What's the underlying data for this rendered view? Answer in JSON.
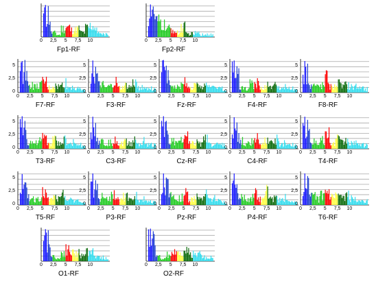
{
  "top_text": "",
  "chart_data": {
    "type": "bar",
    "description_axis": {
      "xticks": [
        "0",
        "2,5",
        "5",
        "7,5",
        "10"
      ],
      "yticks": [
        "0",
        "2,5",
        "5"
      ],
      "xlim": [
        0,
        14
      ],
      "ylim": [
        0,
        6.5
      ]
    },
    "band_colors": {
      "delta": "#1a1aff",
      "theta": "#1f3fd0",
      "alpha": "#22cc22",
      "beta1": "#ffff44",
      "red": "#ff0000",
      "darkgreen": "#0b6b0b",
      "gamma": "#33ddee"
    },
    "panels": [
      {
        "name": "Fp1-RF",
        "y_axis": false,
        "peaks": [
          6.2,
          6.0,
          1.3,
          0.7,
          2.6,
          3.0,
          2.1,
          2.5,
          1.4,
          2.8,
          3.4,
          2.0,
          1.4,
          1.0,
          0.9
        ]
      },
      {
        "name": "Fp2-RF",
        "y_axis": false,
        "peaks": [
          6.3,
          5.9,
          4.5,
          3.6,
          2.5,
          2.3,
          1.3,
          3.1,
          1.0,
          1.0,
          1.2,
          0.8,
          1.1,
          0.9,
          0.7
        ]
      },
      {
        "name": "F7-RF",
        "y_axis": true,
        "peaks": [
          6.1,
          6.3,
          2.4,
          1.8,
          2.3,
          3.4,
          1.5,
          2.0,
          1.9,
          3.0,
          1.6,
          2.1,
          2.2,
          1.4,
          1.1
        ]
      },
      {
        "name": "F3-RF",
        "y_axis": true,
        "peaks": [
          6.2,
          5.0,
          2.3,
          1.5,
          1.9,
          3.2,
          1.4,
          2.1,
          1.7,
          2.9,
          1.5,
          2.3,
          1.6,
          1.3,
          1.0
        ]
      },
      {
        "name": "Fz-RF",
        "y_axis": true,
        "peaks": [
          6.3,
          5.2,
          2.4,
          1.6,
          2.2,
          3.5,
          1.3,
          2.2,
          1.6,
          2.8,
          1.5,
          2.0,
          1.9,
          1.4,
          1.1
        ]
      },
      {
        "name": "F4-RF",
        "y_axis": true,
        "peaks": [
          6.2,
          5.1,
          2.2,
          1.4,
          2.6,
          3.3,
          1.4,
          2.4,
          1.5,
          2.7,
          1.4,
          2.4,
          1.7,
          1.2,
          0.9
        ]
      },
      {
        "name": "F8-RF",
        "y_axis": true,
        "peaks": [
          6.1,
          5.6,
          2.4,
          1.9,
          2.2,
          4.6,
          1.8,
          2.9,
          2.0,
          2.4,
          1.8,
          2.2,
          2.3,
          1.4,
          1.2
        ]
      },
      {
        "name": "T3-RF",
        "y_axis": true,
        "peaks": [
          6.3,
          5.4,
          2.1,
          1.7,
          2.4,
          3.3,
          1.7,
          2.8,
          1.6,
          3.1,
          1.5,
          2.1,
          2.0,
          1.3,
          1.2
        ]
      },
      {
        "name": "C3-RF",
        "y_axis": true,
        "peaks": [
          6.2,
          5.0,
          2.2,
          1.5,
          1.9,
          3.2,
          1.4,
          2.3,
          1.6,
          2.8,
          1.5,
          2.3,
          1.7,
          1.3,
          1.0
        ]
      },
      {
        "name": "Cz-RF",
        "y_axis": true,
        "peaks": [
          6.3,
          5.4,
          2.3,
          1.6,
          2.4,
          3.8,
          1.6,
          2.1,
          1.5,
          2.9,
          1.4,
          2.4,
          2.2,
          1.4,
          1.0
        ]
      },
      {
        "name": "C4-RF",
        "y_axis": true,
        "peaks": [
          6.1,
          5.1,
          2.3,
          1.5,
          2.1,
          3.2,
          1.3,
          2.5,
          1.7,
          2.8,
          1.5,
          2.6,
          2.0,
          1.4,
          1.0
        ]
      },
      {
        "name": "T4-RF",
        "y_axis": true,
        "peaks": [
          6.2,
          5.6,
          2.6,
          1.6,
          2.5,
          4.2,
          1.5,
          3.0,
          1.9,
          2.5,
          1.6,
          2.9,
          2.1,
          1.3,
          1.1
        ]
      },
      {
        "name": "T5-RF",
        "y_axis": true,
        "peaks": [
          6.0,
          4.4,
          2.6,
          1.9,
          2.7,
          3.6,
          1.6,
          2.3,
          1.8,
          3.0,
          1.5,
          1.6,
          2.4,
          1.3,
          1.1
        ]
      },
      {
        "name": "P3-RF",
        "y_axis": true,
        "peaks": [
          6.1,
          4.8,
          2.5,
          1.6,
          2.6,
          3.2,
          1.6,
          2.6,
          1.5,
          3.0,
          1.4,
          2.2,
          1.5,
          1.2,
          1.0
        ]
      },
      {
        "name": "Pz-RF",
        "y_axis": true,
        "peaks": [
          6.1,
          5.3,
          2.6,
          1.6,
          2.4,
          3.4,
          1.8,
          2.6,
          1.6,
          3.2,
          1.6,
          2.2,
          1.8,
          1.3,
          1.1
        ]
      },
      {
        "name": "P4-RF",
        "y_axis": true,
        "peaks": [
          6.1,
          4.0,
          2.3,
          1.8,
          2.5,
          3.3,
          1.7,
          4.2,
          1.7,
          2.4,
          1.5,
          2.2,
          1.9,
          1.3,
          1.0
        ]
      },
      {
        "name": "T6-RF",
        "y_axis": true,
        "peaks": [
          6.1,
          5.6,
          2.6,
          1.8,
          2.8,
          3.5,
          2.2,
          2.6,
          2.0,
          2.9,
          1.9,
          2.4,
          2.3,
          1.5,
          1.2
        ]
      },
      {
        "name": "O1-RF",
        "y_axis": false,
        "peaks": [
          6.2,
          6.0,
          1.4,
          0.8,
          2.6,
          3.3,
          2.4,
          2.8,
          1.5,
          2.7,
          3.1,
          2.0,
          1.3,
          1.0,
          0.9
        ]
      },
      {
        "name": "O2-RF",
        "y_axis": false,
        "peaks": [
          6.3,
          5.8,
          1.2,
          0.8,
          1.9,
          2.4,
          2.0,
          2.4,
          2.8,
          2.3,
          2.0,
          2.2,
          1.2,
          1.4,
          0.9
        ]
      }
    ]
  }
}
